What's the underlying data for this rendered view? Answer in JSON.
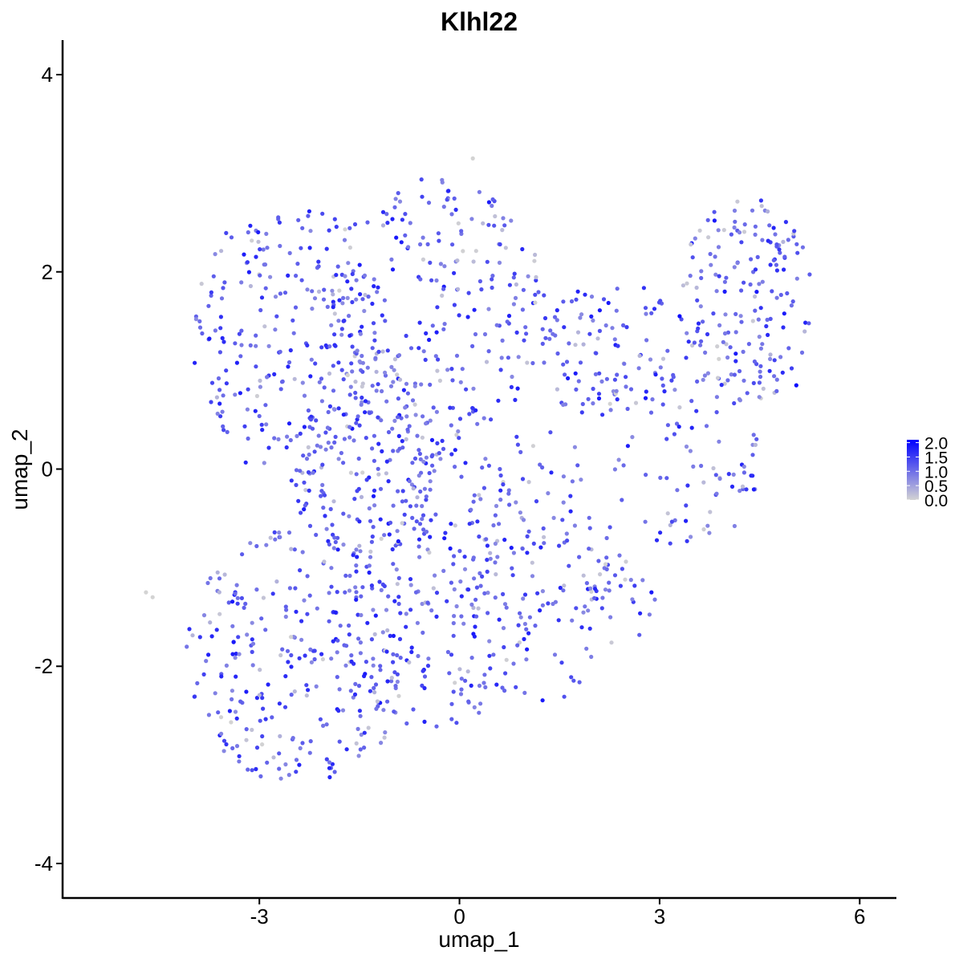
{
  "chart_data": {
    "type": "scatter",
    "title": "Klhl22",
    "xlabel": "umap_1",
    "ylabel": "umap_2",
    "xlim": [
      -5.95,
      6.55
    ],
    "ylim": [
      -4.35,
      4.35
    ],
    "x_ticks": [
      -3,
      0,
      3,
      6
    ],
    "x_tick_labels": [
      "-3",
      "0",
      "3",
      "6"
    ],
    "y_ticks": [
      -4,
      -2,
      0,
      2,
      4
    ],
    "y_tick_labels": [
      "-4",
      "-2",
      "0",
      "2",
      "4"
    ],
    "grid": false,
    "legend_position": "right",
    "color_scale": {
      "low_color": "#d3d3d3",
      "high_color": "#0000ff",
      "min": 0.0,
      "max": 2.1,
      "ticks": [
        0.0,
        0.5,
        1.0,
        1.5,
        2.0
      ],
      "tick_labels": [
        "0.0",
        "0.5",
        "1.0",
        "1.5",
        "2.0"
      ]
    },
    "point_color_note": "each point colored by Klhl22 expression",
    "regions": [
      {
        "cx": -2.6,
        "cy": 1.3,
        "rx": 1.4,
        "ry": 1.45,
        "n": 230
      },
      {
        "cx": -0.4,
        "cy": 1.6,
        "rx": 1.7,
        "ry": 1.35,
        "n": 260
      },
      {
        "cx": -2.4,
        "cy": -1.9,
        "rx": 1.7,
        "ry": 1.3,
        "n": 280
      },
      {
        "cx": -0.4,
        "cy": -1.2,
        "rx": 1.6,
        "ry": 1.5,
        "n": 260
      },
      {
        "cx": 1.2,
        "cy": -1.0,
        "rx": 1.2,
        "ry": 1.4,
        "n": 120
      },
      {
        "cx": -1.4,
        "cy": 0.1,
        "rx": 1.2,
        "ry": 1.0,
        "n": 160
      },
      {
        "cx": 2.3,
        "cy": 1.2,
        "rx": 1.2,
        "ry": 0.7,
        "n": 110
      },
      {
        "cx": 4.3,
        "cy": 1.7,
        "rx": 1.0,
        "ry": 1.05,
        "n": 180
      },
      {
        "cx": 3.4,
        "cy": 0.1,
        "rx": 1.1,
        "ry": 0.95,
        "n": 80
      },
      {
        "cx": 2.4,
        "cy": -1.3,
        "rx": 0.6,
        "ry": 0.5,
        "n": 30
      }
    ],
    "highlight_points": [
      {
        "x": 3.3,
        "y": 1.55,
        "value": 2.0
      },
      {
        "x": 5.05,
        "y": 0.85,
        "value": 2.0
      },
      {
        "x": -4.7,
        "y": -1.25,
        "value": 0.0
      },
      {
        "x": -4.6,
        "y": -1.3,
        "value": 0.0
      },
      {
        "x": 0.2,
        "y": 3.15,
        "value": 0.0
      }
    ]
  }
}
